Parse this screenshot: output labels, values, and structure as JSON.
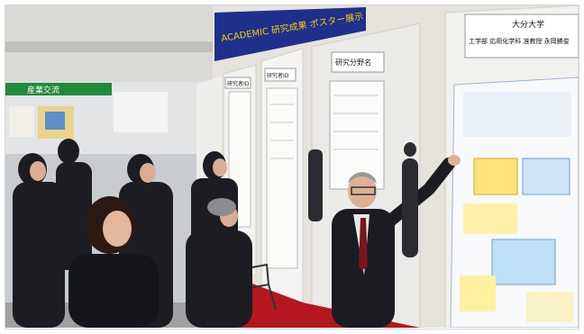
{
  "photo": {
    "subject": "poster-session-exhibition-hall",
    "signage": {
      "banner_text": "ACADEMIC 研究成果 ポスター展示",
      "left_booth_sign": "産業交流",
      "booth_label_1": "研究者ID",
      "booth_label_2": "研究者ID",
      "booth_label_3": "研究分野名",
      "booth_label_4": "大分大学",
      "main_poster_header_line1": "大分大学",
      "main_poster_header_line2": "工学部 応用化学科 准教授 永岡勝俊"
    },
    "colors": {
      "banner_blue": "#1f2f8c",
      "carpet_red": "#b5171e",
      "wall_light": "#e8e6e1",
      "panel_white": "#f4f4f2",
      "suit_dark": "#1b1d22"
    }
  }
}
